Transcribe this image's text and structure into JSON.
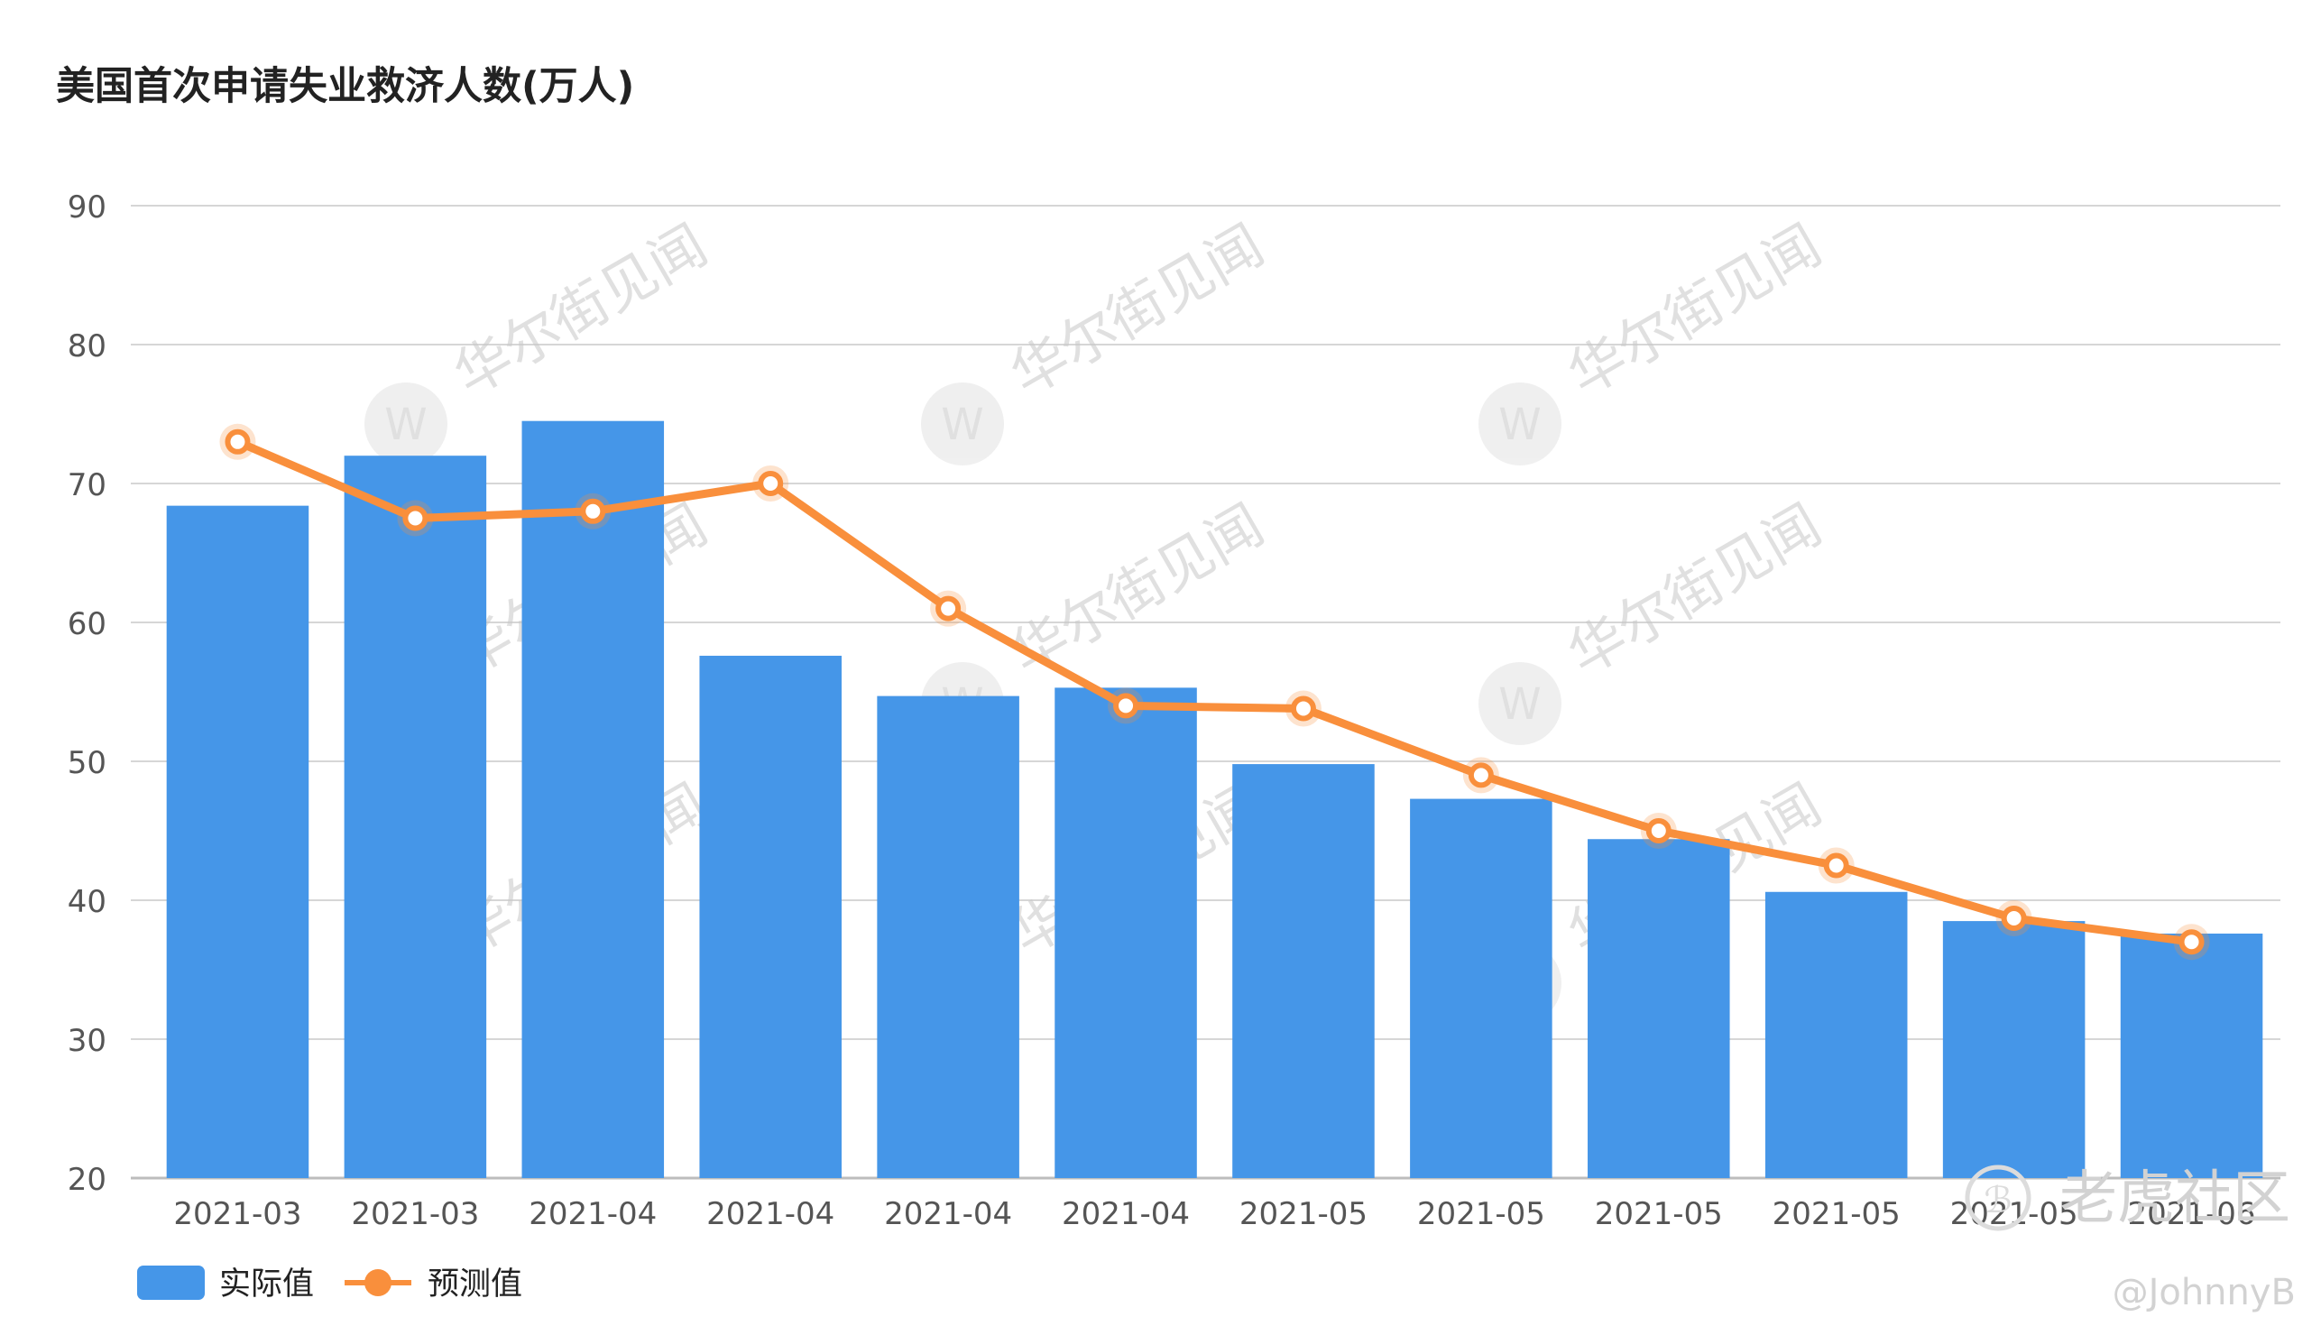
{
  "chart_data": {
    "type": "bar",
    "title": "美国首次申请失业救济人数(万人)",
    "categories": [
      "2021-03",
      "2021-03",
      "2021-04",
      "2021-04",
      "2021-04",
      "2021-04",
      "2021-05",
      "2021-05",
      "2021-05",
      "2021-05",
      "2021-05",
      "2021-06"
    ],
    "series": [
      {
        "name": "实际值",
        "type": "bar",
        "color": "#4596E8",
        "values": [
          68.4,
          72.0,
          74.5,
          57.6,
          54.7,
          55.3,
          49.8,
          47.3,
          44.4,
          40.6,
          38.5,
          37.6
        ]
      },
      {
        "name": "预测值",
        "type": "line",
        "color": "#F98F3C",
        "values": [
          73.0,
          67.5,
          68.0,
          70.0,
          61.0,
          54.0,
          53.8,
          49.0,
          45.0,
          42.5,
          38.7,
          37.0
        ]
      }
    ],
    "yticks": [
      20,
      30,
      40,
      50,
      60,
      70,
      80,
      90
    ],
    "ylim": [
      20,
      90
    ],
    "grid": true,
    "legend_position": "bottom-left"
  },
  "watermark": {
    "text": "华尔街见闻",
    "logo": "W"
  },
  "overlay": {
    "brand": "老虎社区",
    "handle": "@JohnnyB"
  }
}
